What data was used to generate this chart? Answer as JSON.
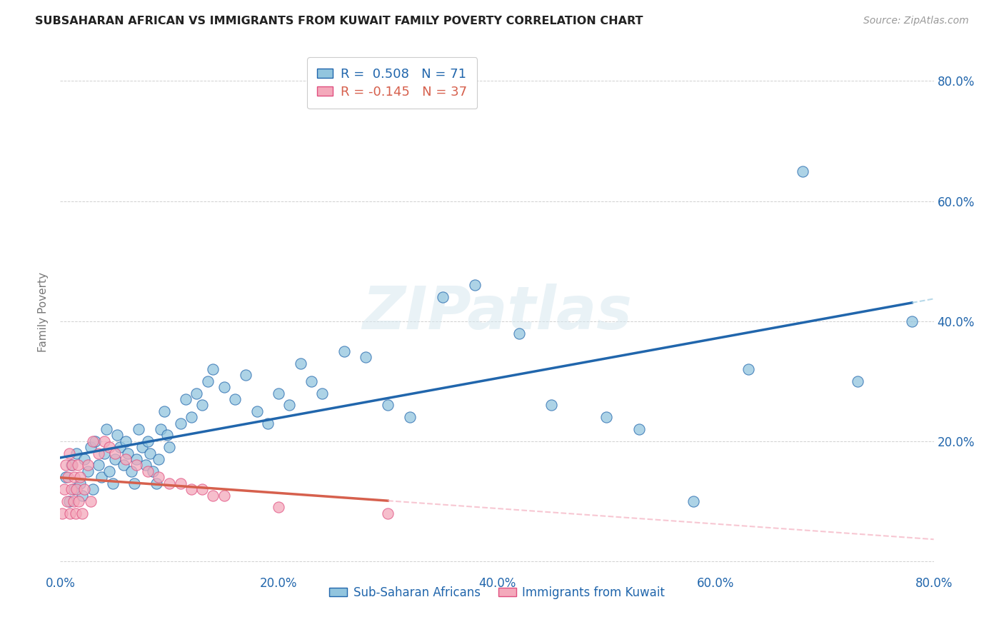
{
  "title": "SUBSAHARAN AFRICAN VS IMMIGRANTS FROM KUWAIT FAMILY POVERTY CORRELATION CHART",
  "source": "Source: ZipAtlas.com",
  "ylabel": "Family Poverty",
  "xlim": [
    0.0,
    0.8
  ],
  "ylim": [
    -0.02,
    0.85
  ],
  "xticks": [
    0.0,
    0.2,
    0.4,
    0.6,
    0.8
  ],
  "yticks": [
    0.0,
    0.2,
    0.4,
    0.6,
    0.8
  ],
  "xticklabels": [
    "0.0%",
    "20.0%",
    "40.0%",
    "60.0%",
    "80.0%"
  ],
  "yticklabels_right": [
    "",
    "20.0%",
    "40.0%",
    "60.0%",
    "80.0%"
  ],
  "blue_color": "#92c5de",
  "pink_color": "#f4a9bb",
  "blue_line_color": "#2166ac",
  "pink_line_color": "#d6604d",
  "legend_line1": "R =  0.508   N = 71",
  "legend_line2": "R = -0.145   N = 37",
  "blue_scatter_x": [
    0.005,
    0.008,
    0.01,
    0.012,
    0.015,
    0.018,
    0.02,
    0.022,
    0.025,
    0.028,
    0.03,
    0.032,
    0.035,
    0.038,
    0.04,
    0.042,
    0.045,
    0.048,
    0.05,
    0.052,
    0.055,
    0.058,
    0.06,
    0.062,
    0.065,
    0.068,
    0.07,
    0.072,
    0.075,
    0.078,
    0.08,
    0.082,
    0.085,
    0.088,
    0.09,
    0.092,
    0.095,
    0.098,
    0.1,
    0.11,
    0.115,
    0.12,
    0.125,
    0.13,
    0.135,
    0.14,
    0.15,
    0.16,
    0.17,
    0.18,
    0.19,
    0.2,
    0.21,
    0.22,
    0.23,
    0.24,
    0.26,
    0.28,
    0.3,
    0.32,
    0.35,
    0.38,
    0.42,
    0.45,
    0.5,
    0.53,
    0.58,
    0.63,
    0.68,
    0.73,
    0.78
  ],
  "blue_scatter_y": [
    0.14,
    0.1,
    0.16,
    0.12,
    0.18,
    0.13,
    0.11,
    0.17,
    0.15,
    0.19,
    0.12,
    0.2,
    0.16,
    0.14,
    0.18,
    0.22,
    0.15,
    0.13,
    0.17,
    0.21,
    0.19,
    0.16,
    0.2,
    0.18,
    0.15,
    0.13,
    0.17,
    0.22,
    0.19,
    0.16,
    0.2,
    0.18,
    0.15,
    0.13,
    0.17,
    0.22,
    0.25,
    0.21,
    0.19,
    0.23,
    0.27,
    0.24,
    0.28,
    0.26,
    0.3,
    0.32,
    0.29,
    0.27,
    0.31,
    0.25,
    0.23,
    0.28,
    0.26,
    0.33,
    0.3,
    0.28,
    0.35,
    0.34,
    0.26,
    0.24,
    0.44,
    0.46,
    0.38,
    0.26,
    0.24,
    0.22,
    0.1,
    0.32,
    0.65,
    0.3,
    0.4
  ],
  "pink_scatter_x": [
    0.002,
    0.004,
    0.005,
    0.006,
    0.007,
    0.008,
    0.009,
    0.01,
    0.011,
    0.012,
    0.013,
    0.014,
    0.015,
    0.016,
    0.017,
    0.018,
    0.02,
    0.022,
    0.025,
    0.028,
    0.03,
    0.035,
    0.04,
    0.045,
    0.05,
    0.06,
    0.07,
    0.08,
    0.09,
    0.1,
    0.11,
    0.12,
    0.13,
    0.14,
    0.15,
    0.2,
    0.3
  ],
  "pink_scatter_y": [
    0.08,
    0.12,
    0.16,
    0.1,
    0.14,
    0.18,
    0.08,
    0.12,
    0.16,
    0.1,
    0.14,
    0.08,
    0.12,
    0.16,
    0.1,
    0.14,
    0.08,
    0.12,
    0.16,
    0.1,
    0.2,
    0.18,
    0.2,
    0.19,
    0.18,
    0.17,
    0.16,
    0.15,
    0.14,
    0.13,
    0.13,
    0.12,
    0.12,
    0.11,
    0.11,
    0.09,
    0.08
  ],
  "watermark": "ZIPatlas",
  "background_color": "#ffffff",
  "grid_color": "#d0d0d0"
}
